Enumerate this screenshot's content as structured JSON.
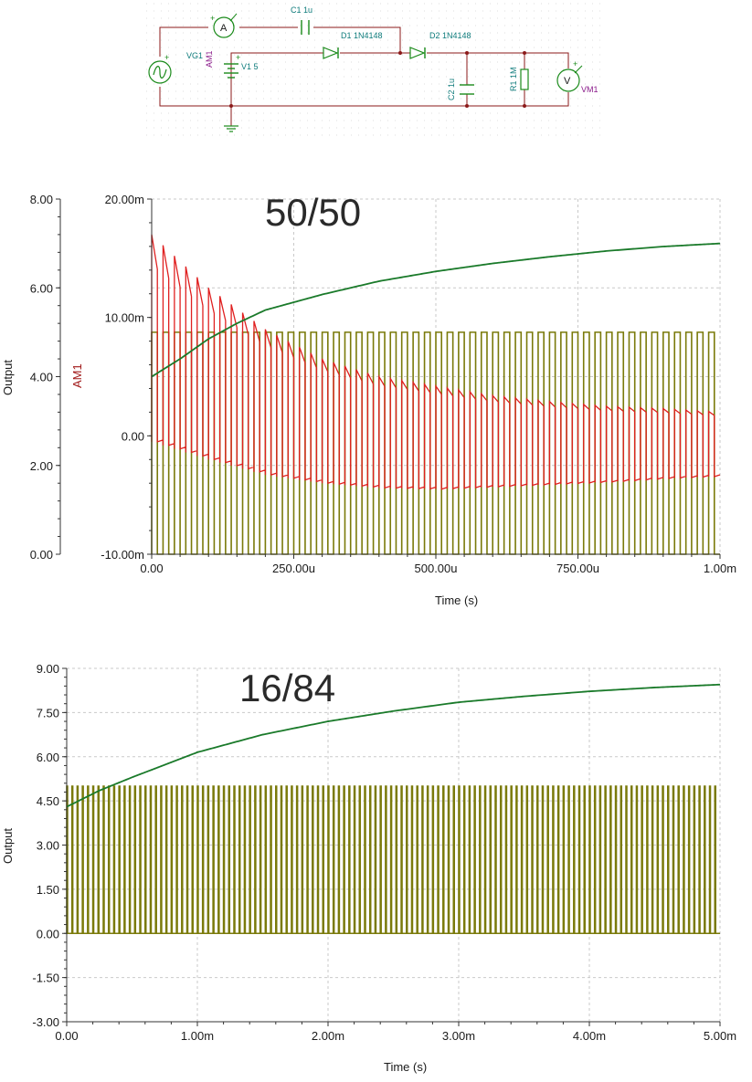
{
  "schematic": {
    "labels": {
      "c1": "C1 1u",
      "d1": "D1 1N4148",
      "d2": "D2 1N4148",
      "vg1": "VG1",
      "am1": "AM1",
      "v1": "V1 5",
      "c2": "C2 1u",
      "r1": "R1 1M",
      "vm1": "VM1",
      "ammeter_symbol": "A",
      "voltmeter_symbol": "V"
    },
    "colors": {
      "wire": "#8b1a1a",
      "component": "#1a8a1a",
      "label": "#0e7b7b",
      "probe_label": "#8a1a8a"
    }
  },
  "chart_data": [
    {
      "type": "line",
      "title": "50/50",
      "xlabel": "Time (s)",
      "ylabel_left": "Output",
      "ylabel_right": "AM1",
      "xlim": [
        0,
        1.0
      ],
      "x_unit": "ms",
      "ylim_left": [
        0,
        8
      ],
      "ylim_right": [
        -10,
        20
      ],
      "x_ticks": [
        "0.00",
        "250.00u",
        "500.00u",
        "750.00u",
        "1.00m"
      ],
      "y_ticks_left": [
        "0.00",
        "2.00",
        "4.00",
        "6.00",
        "8.00"
      ],
      "y_ticks_right": [
        "-10.00m",
        "0.00",
        "10.00m",
        "20.00m"
      ],
      "grid": true,
      "series": [
        {
          "color": "#7a7a0a",
          "kind": "square",
          "period": 0.02,
          "duty": 0.5,
          "low": 0,
          "high": 5,
          "start": 0
        },
        {
          "color": "#1a7a2a",
          "kind": "charge",
          "x": [
            0,
            0.05,
            0.1,
            0.15,
            0.2,
            0.3,
            0.4,
            0.5,
            0.6,
            0.7,
            0.8,
            0.9,
            1.0
          ],
          "values": [
            4.0,
            4.4,
            4.85,
            5.2,
            5.5,
            5.85,
            6.15,
            6.37,
            6.55,
            6.7,
            6.83,
            6.93,
            7.0
          ]
        },
        {
          "color": "#e02020",
          "kind": "current",
          "axis": "right",
          "x": [
            0,
            0.1,
            0.2,
            0.3,
            0.4,
            0.5,
            0.6,
            0.7,
            0.8,
            0.9,
            1.0
          ],
          "values": [
            17.0,
            12.5,
            9.0,
            6.5,
            5.0,
            4.2,
            3.4,
            2.9,
            2.5,
            2.3,
            2.0
          ],
          "low_values": [
            -0.5,
            -2.0,
            -3.3,
            -4.0,
            -4.4,
            -4.5,
            -4.3,
            -4.1,
            -3.9,
            -3.6,
            -3.4
          ]
        }
      ]
    },
    {
      "type": "line",
      "title": "16/84",
      "xlabel": "Time (s)",
      "ylabel": "Output",
      "xlim": [
        0,
        5.0
      ],
      "x_unit": "ms",
      "ylim": [
        -3,
        9
      ],
      "x_ticks": [
        "0.00",
        "1.00m",
        "2.00m",
        "3.00m",
        "4.00m",
        "5.00m"
      ],
      "y_ticks": [
        "-3.00",
        "-1.50",
        "0.00",
        "1.50",
        "3.00",
        "4.50",
        "6.00",
        "7.50",
        "9.00"
      ],
      "grid": true,
      "series": [
        {
          "color": "#7a7a0a",
          "kind": "square",
          "period": 0.04,
          "duty": 0.16,
          "low": 0,
          "high": 5,
          "start": 0
        },
        {
          "color": "#1a7a2a",
          "kind": "charge",
          "x": [
            0,
            0.25,
            0.5,
            1.0,
            1.5,
            2.0,
            2.5,
            3.0,
            3.5,
            4.0,
            4.5,
            5.0
          ],
          "values": [
            4.3,
            4.85,
            5.3,
            6.15,
            6.75,
            7.2,
            7.55,
            7.85,
            8.05,
            8.22,
            8.35,
            8.45
          ]
        }
      ]
    }
  ]
}
